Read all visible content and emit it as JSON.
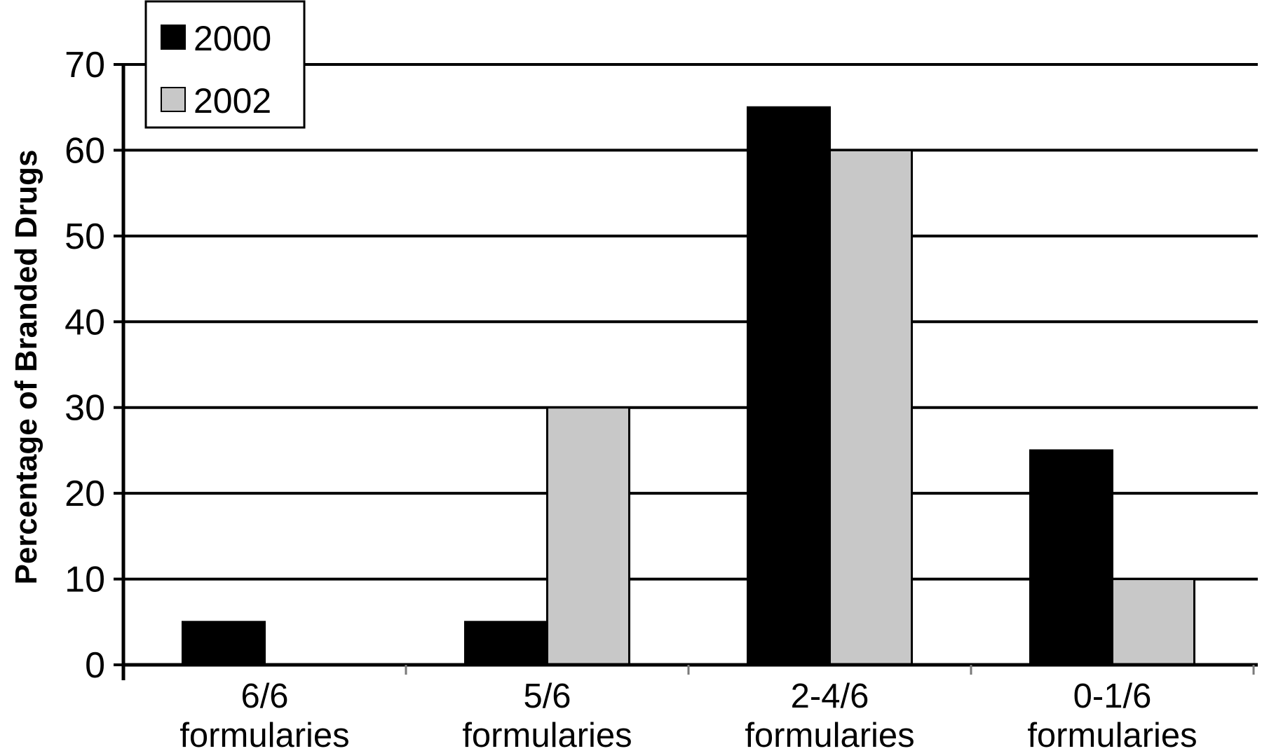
{
  "chart_data": {
    "type": "bar",
    "title": "",
    "xlabel": "",
    "ylabel": "Percentage of Branded Drugs",
    "ylim": [
      0,
      70
    ],
    "yticks": [
      0,
      10,
      20,
      30,
      40,
      50,
      60,
      70
    ],
    "ytick_labels": [
      "0",
      "10",
      "20",
      "30",
      "40",
      "50",
      "60",
      "70"
    ],
    "grid": "horizontal",
    "legend_position": "top-left",
    "categories": [
      [
        "6/6",
        "formularies"
      ],
      [
        "5/6",
        "formularies"
      ],
      [
        "2-4/6",
        "formularies"
      ],
      [
        "0-1/6",
        "formularies"
      ]
    ],
    "series": [
      {
        "name": "2000",
        "color": "#000000",
        "values": [
          5,
          5,
          65,
          25
        ]
      },
      {
        "name": "2002",
        "color": "#c8c8c8",
        "values": [
          0,
          30,
          60,
          10
        ]
      }
    ]
  }
}
